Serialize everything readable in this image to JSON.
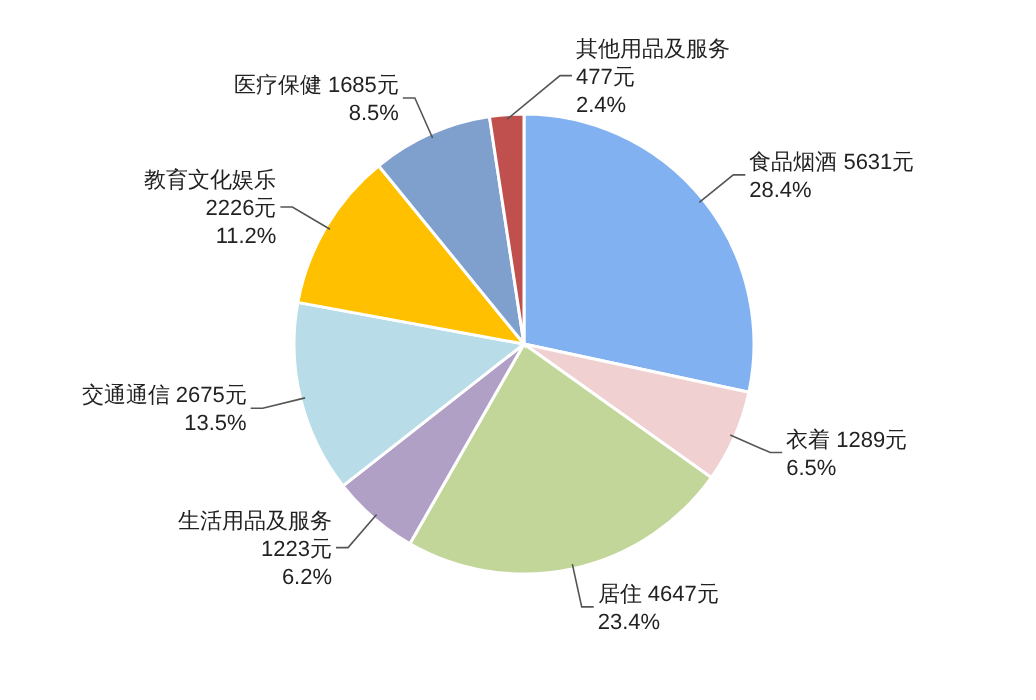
{
  "chart_data": {
    "type": "pie",
    "categories": [
      "食品烟酒",
      "衣着",
      "居住",
      "生活用品及服务",
      "交通通信",
      "教育文化娱乐",
      "医疗保健",
      "其他用品及服务"
    ],
    "values": [
      5631,
      1289,
      4647,
      1223,
      2675,
      2226,
      1685,
      477
    ],
    "value_labels": [
      "5631元\n28.4%",
      "1289元\n6.5%",
      "4647元\n23.4%",
      "1223元\n6.2%",
      "2675元\n13.5%",
      "2226元\n11.2%",
      "1685元\n8.5%",
      "477元\n2.4%"
    ],
    "colors": [
      "#82b1f2",
      "#f0d0d0",
      "#c2d69a",
      "#b1a0c6",
      "#b8dde8",
      "#ffc000",
      "#7f9fcc",
      "#c0504d"
    ]
  }
}
